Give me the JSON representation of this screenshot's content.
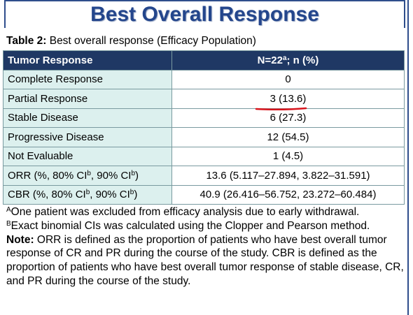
{
  "title": "Best Overall Response",
  "caption": {
    "label": "Table 2:",
    "text": " Best overall response (Efficacy Population)"
  },
  "table": {
    "header": [
      [
        {
          "t": "Tumor Response"
        }
      ],
      [
        {
          "t": "N=22"
        },
        {
          "sup": "a"
        },
        {
          "t": "; n (%)"
        }
      ]
    ],
    "rows": [
      [
        [
          {
            "t": "Complete Response"
          }
        ],
        [
          {
            "t": "0"
          }
        ]
      ],
      [
        [
          {
            "t": "Partial Response"
          }
        ],
        [
          {
            "t": "3 (13.6)"
          }
        ]
      ],
      [
        [
          {
            "t": "Stable Disease"
          }
        ],
        [
          {
            "t": "6 (27.3)"
          }
        ]
      ],
      [
        [
          {
            "t": "Progressive Disease"
          }
        ],
        [
          {
            "t": "12 (54.5)"
          }
        ]
      ],
      [
        [
          {
            "t": "Not Evaluable"
          }
        ],
        [
          {
            "t": "1 (4.5)"
          }
        ]
      ],
      [
        [
          {
            "t": "ORR (%, 80% CI"
          },
          {
            "sup": "b"
          },
          {
            "t": ", 90% CI"
          },
          {
            "sup": "b"
          },
          {
            "t": ")"
          }
        ],
        [
          {
            "t": "13.6 (5.117–27.894, 3.822–31.591)"
          }
        ]
      ],
      [
        [
          {
            "t": "CBR (%, 80% CI"
          },
          {
            "sup": "b"
          },
          {
            "t": ", 90% CI"
          },
          {
            "sup": "b"
          },
          {
            "t": ")"
          }
        ],
        [
          {
            "t": "40.9 (26.416–56.752, 23.272–60.484)"
          }
        ]
      ]
    ]
  },
  "footnotes": [
    [
      {
        "sup": "A"
      },
      {
        "t": "One patient was excluded from efficacy analysis due to early withdrawal."
      }
    ],
    [
      {
        "sup": "B"
      },
      {
        "t": "Exact binomial CIs was calculated using the Clopper and Pearson method."
      }
    ],
    [
      {
        "b": "Note:"
      },
      {
        "t": " ORR is defined as the proportion of patients who have best overall tumor response of CR and PR during the course of the study. CBR is defined as the proportion of patients who have best overall tumor response of stable disease, CR, and PR during the course of the study."
      }
    ]
  ]
}
